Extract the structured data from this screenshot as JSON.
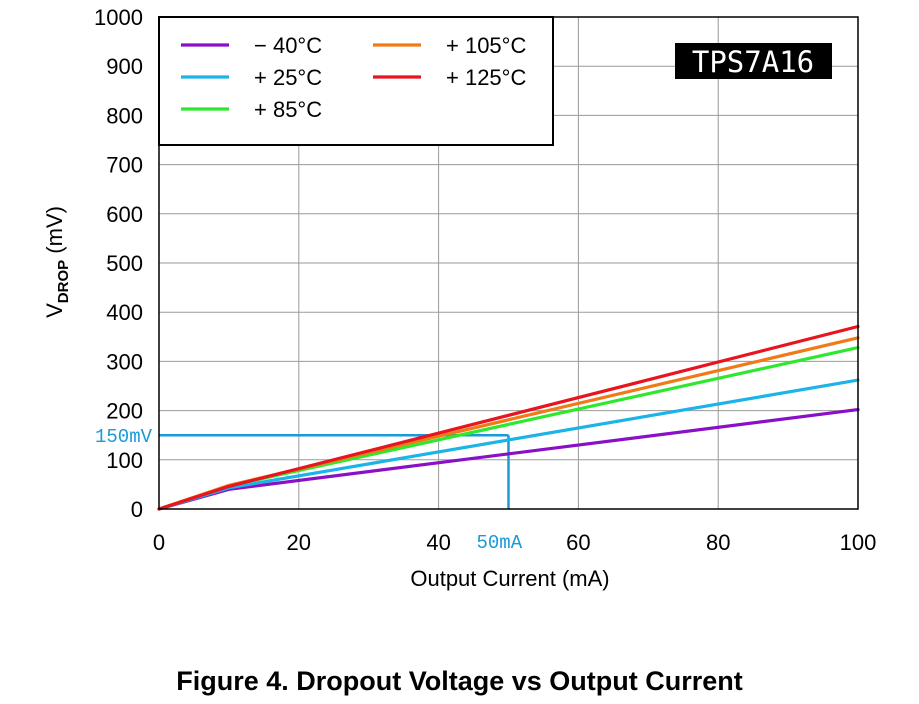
{
  "caption": "Figure 4. Dropout Voltage vs Output Current",
  "chart_data": {
    "type": "line",
    "xlabel": "Output Current (mA)",
    "ylabel_main": "V",
    "ylabel_sub": "DROP",
    "ylabel_unit": " (mV)",
    "xlim": [
      0,
      100
    ],
    "ylim": [
      0,
      1000
    ],
    "xticks": [
      0,
      20,
      40,
      60,
      80,
      100
    ],
    "yticks": [
      0,
      100,
      200,
      300,
      400,
      500,
      600,
      700,
      800,
      900,
      1000
    ],
    "grid": true,
    "legend_position": "top-left",
    "badge": "TPS7A16",
    "series": [
      {
        "name": "− 40°C",
        "color": "#8a0fc7",
        "x": [
          0,
          10,
          100
        ],
        "y": [
          0,
          40,
          202
        ]
      },
      {
        "name": "+ 25°C",
        "color": "#1cb4e8",
        "x": [
          0,
          10,
          100
        ],
        "y": [
          0,
          43,
          262
        ]
      },
      {
        "name": "+ 85°C",
        "color": "#2ee82e",
        "x": [
          0,
          10,
          100
        ],
        "y": [
          0,
          47,
          328
        ]
      },
      {
        "name": "+ 105°C",
        "color": "#f07a16",
        "x": [
          0,
          10,
          100
        ],
        "y": [
          0,
          48,
          348
        ]
      },
      {
        "name": "+ 125°C",
        "color": "#e8141e",
        "x": [
          0,
          10,
          100
        ],
        "y": [
          0,
          46,
          371
        ]
      }
    ],
    "annotations": [
      {
        "label": "150mV",
        "axis": "y",
        "value": 150,
        "color": "#1a9ad6"
      },
      {
        "label": "50mA",
        "axis": "x",
        "value": 50,
        "color": "#1a9ad6"
      }
    ]
  }
}
